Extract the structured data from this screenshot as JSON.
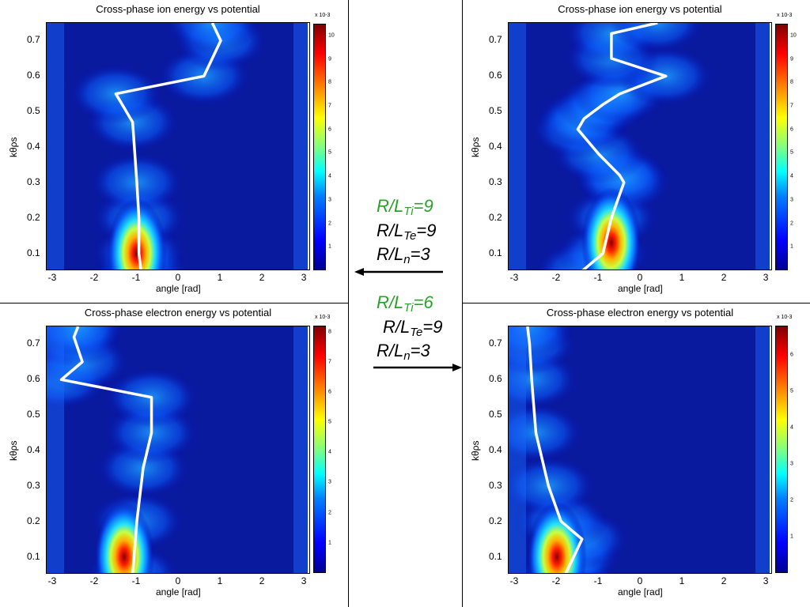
{
  "colors": {
    "label_green": "#2aa22a",
    "label_black": "#000000",
    "curve": "#ffffff"
  },
  "annotations": {
    "top": {
      "ti_prefix": "R/L",
      "ti_sub": "Ti",
      "ti_val": "=9",
      "te_prefix": "R/L",
      "te_sub": "Te",
      "te_val": "=9",
      "n_prefix": "R/L",
      "n_sub": "n",
      "n_val": "=3"
    },
    "bottom": {
      "ti_prefix": "R/L",
      "ti_sub": "Ti",
      "ti_val": "=6",
      "te_prefix": "R/L",
      "te_sub": "Te",
      "te_val": "=9",
      "n_prefix": "R/L",
      "n_sub": "n",
      "n_val": "=3"
    }
  },
  "chart_data": [
    {
      "type": "heatmap",
      "title": "Cross-phase ion energy vs potential",
      "xlabel": "angle [rad]",
      "ylabel": "kθρs",
      "xlim": [
        -3.15,
        3.15
      ],
      "ylim": [
        0.05,
        0.75
      ],
      "xticks": [
        "-3",
        "-2",
        "-1",
        "0",
        "1",
        "2",
        "3"
      ],
      "yticks": [
        "0.1",
        "0.2",
        "0.3",
        "0.4",
        "0.5",
        "0.6",
        "0.7"
      ],
      "colorbar": {
        "multiplier": "x 10-3",
        "ticks": [
          "1",
          "2",
          "3",
          "4",
          "5",
          "6",
          "7",
          "8",
          "9",
          "10"
        ],
        "max": 10.5
      },
      "peak": {
        "x": -1.0,
        "y": 0.1
      },
      "series": [
        {
          "x": [
            -0.9,
            -0.95,
            -0.95,
            -1.0,
            -1.1,
            -1.5,
            0.6,
            1.0,
            0.8
          ],
          "y": [
            0.05,
            0.1,
            0.2,
            0.3,
            0.47,
            0.55,
            0.6,
            0.7,
            0.75
          ]
        }
      ]
    },
    {
      "type": "heatmap",
      "title": "Cross-phase ion energy vs potential",
      "xlabel": "angle [rad]",
      "ylabel": "kθρs",
      "xlim": [
        -3.15,
        3.15
      ],
      "ylim": [
        0.05,
        0.75
      ],
      "xticks": [
        "-3",
        "-2",
        "-1",
        "0",
        "1",
        "2",
        "3"
      ],
      "yticks": [
        "0.1",
        "0.2",
        "0.3",
        "0.4",
        "0.5",
        "0.6",
        "0.7"
      ],
      "colorbar": {
        "multiplier": "x 10-3",
        "ticks": [
          "1",
          "2",
          "3",
          "4",
          "5",
          "6",
          "7",
          "8",
          "9",
          "10"
        ],
        "max": 10.5
      },
      "peak": {
        "x": -0.7,
        "y": 0.13
      },
      "series": [
        {
          "x": [
            -1.4,
            -0.9,
            -0.7,
            -0.4,
            -0.5,
            -1.0,
            -1.5,
            -1.35,
            -0.9,
            -0.5,
            0.6,
            -0.7,
            -0.7,
            0.4
          ],
          "y": [
            0.05,
            0.1,
            0.2,
            0.3,
            0.32,
            0.38,
            0.45,
            0.48,
            0.52,
            0.55,
            0.6,
            0.65,
            0.72,
            0.75
          ]
        }
      ]
    },
    {
      "type": "heatmap",
      "title": "Cross-phase electron energy vs potential",
      "xlabel": "angle [rad]",
      "ylabel": "kθρs",
      "xlim": [
        -3.15,
        3.15
      ],
      "ylim": [
        0.05,
        0.75
      ],
      "xticks": [
        "-3",
        "-2",
        "-1",
        "0",
        "1",
        "2",
        "3"
      ],
      "yticks": [
        "0.1",
        "0.2",
        "0.3",
        "0.4",
        "0.5",
        "0.6",
        "0.7"
      ],
      "colorbar": {
        "multiplier": "x 10-3",
        "ticks": [
          "1",
          "2",
          "3",
          "4",
          "5",
          "6",
          "7",
          "8"
        ],
        "max": 8.2
      },
      "peak": {
        "x": -1.3,
        "y": 0.1
      },
      "series": [
        {
          "x": [
            -1.1,
            -1.0,
            -0.85,
            -0.65,
            -0.65,
            -2.8,
            -2.3,
            -2.5,
            -2.4
          ],
          "y": [
            0.05,
            0.2,
            0.35,
            0.45,
            0.55,
            0.6,
            0.65,
            0.72,
            0.75
          ]
        }
      ]
    },
    {
      "type": "heatmap",
      "title": "Cross-phase electron energy vs potential",
      "xlabel": "angle [rad]",
      "ylabel": "kθρs",
      "xlim": [
        -3.15,
        3.15
      ],
      "ylim": [
        0.05,
        0.75
      ],
      "xticks": [
        "-3",
        "-2",
        "-1",
        "0",
        "1",
        "2",
        "3"
      ],
      "yticks": [
        "0.1",
        "0.2",
        "0.3",
        "0.4",
        "0.5",
        "0.6",
        "0.7"
      ],
      "colorbar": {
        "multiplier": "x 10-3",
        "ticks": [
          "1",
          "2",
          "3",
          "4",
          "5",
          "6"
        ],
        "max": 6.8
      },
      "peak": {
        "x": -2.0,
        "y": 0.1
      },
      "series": [
        {
          "x": [
            -1.8,
            -1.6,
            -1.4,
            -1.9,
            -2.2,
            -2.5,
            -2.6,
            -2.65,
            -2.7
          ],
          "y": [
            0.05,
            0.1,
            0.15,
            0.2,
            0.3,
            0.45,
            0.6,
            0.7,
            0.75
          ]
        }
      ]
    }
  ]
}
